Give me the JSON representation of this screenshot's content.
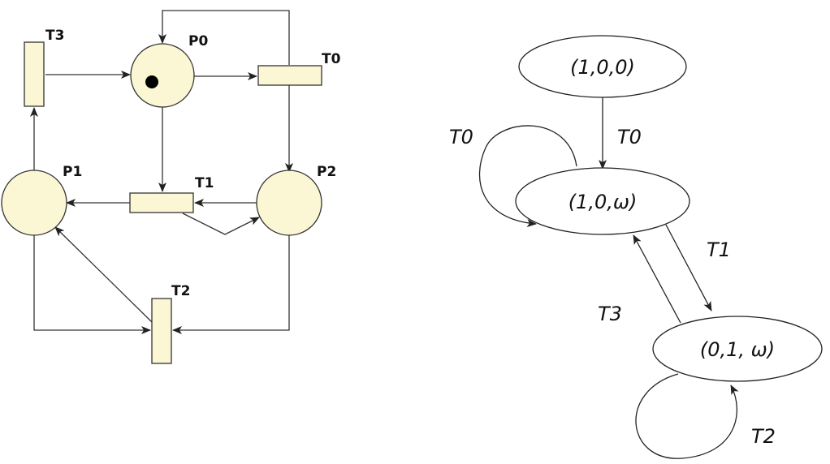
{
  "petri_net": {
    "places": {
      "p0": "P0",
      "p1": "P1",
      "p2": "P2"
    },
    "transitions": {
      "t0": "T0",
      "t1": "T1",
      "t2": "T2",
      "t3": "T3"
    }
  },
  "coverability_graph": {
    "nodes": {
      "n0": "(1,0,0)",
      "n1": "(1,0,ω)",
      "n2": "(0,1, ω)"
    },
    "edges": {
      "e_n0_n1": "T0",
      "e_n1_loop": "T0",
      "e_n1_n2": "T1",
      "e_n2_n1": "T3",
      "e_n2_loop": "T2"
    }
  },
  "colors": {
    "node_fill": "#fbf6d3",
    "stroke": "#333333"
  }
}
